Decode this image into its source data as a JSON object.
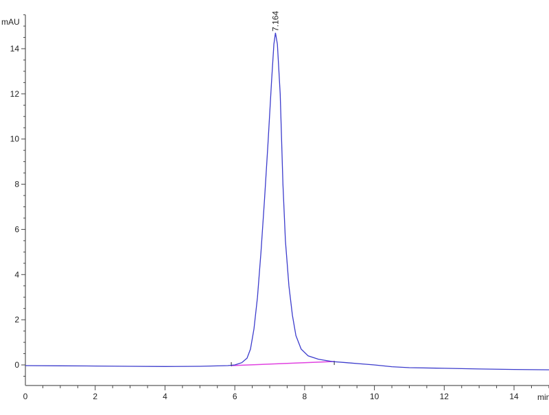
{
  "chart_data": {
    "type": "line",
    "title": "",
    "xlabel": "min",
    "ylabel": "mAU",
    "xlim": [
      0,
      15.1
    ],
    "ylim": [
      -0.9,
      15.5
    ],
    "x_ticks": [
      0,
      2,
      4,
      6,
      8,
      10,
      12,
      14
    ],
    "y_ticks": [
      0,
      2,
      4,
      6,
      8,
      10,
      12,
      14
    ],
    "x_minor_step": 0.5,
    "y_minor_step": 0.5,
    "grid": false,
    "colors": {
      "signal": "#3a3acc",
      "baseline": "#e040e0",
      "axis": "#777777"
    },
    "series": [
      {
        "x": [
          0,
          1,
          2,
          3,
          4,
          5,
          5.8,
          6.0,
          6.2,
          6.35,
          6.45,
          6.55,
          6.65,
          6.75,
          6.85,
          6.95,
          7.05,
          7.12,
          7.164,
          7.22,
          7.3,
          7.38,
          7.45,
          7.55,
          7.65,
          7.75,
          7.9,
          8.1,
          8.4,
          8.8,
          9.2,
          9.6,
          10,
          10.5,
          11,
          12,
          13,
          14,
          15.1
        ],
        "y": [
          -0.03,
          -0.04,
          -0.05,
          -0.06,
          -0.07,
          -0.06,
          -0.03,
          0.0,
          0.1,
          0.3,
          0.7,
          1.6,
          3.0,
          5.0,
          7.3,
          9.8,
          12.5,
          14.2,
          14.7,
          14.2,
          12.0,
          8.0,
          5.5,
          3.5,
          2.2,
          1.3,
          0.7,
          0.4,
          0.25,
          0.15,
          0.1,
          0.05,
          0.0,
          -0.08,
          -0.12,
          -0.15,
          -0.18,
          -0.2,
          -0.22
        ]
      }
    ],
    "baseline_segment": {
      "x": [
        5.9,
        8.85
      ],
      "y": [
        -0.03,
        0.15
      ]
    },
    "annotations": [
      {
        "text": "7.164",
        "x": 7.164,
        "y": 14.7
      }
    ]
  }
}
